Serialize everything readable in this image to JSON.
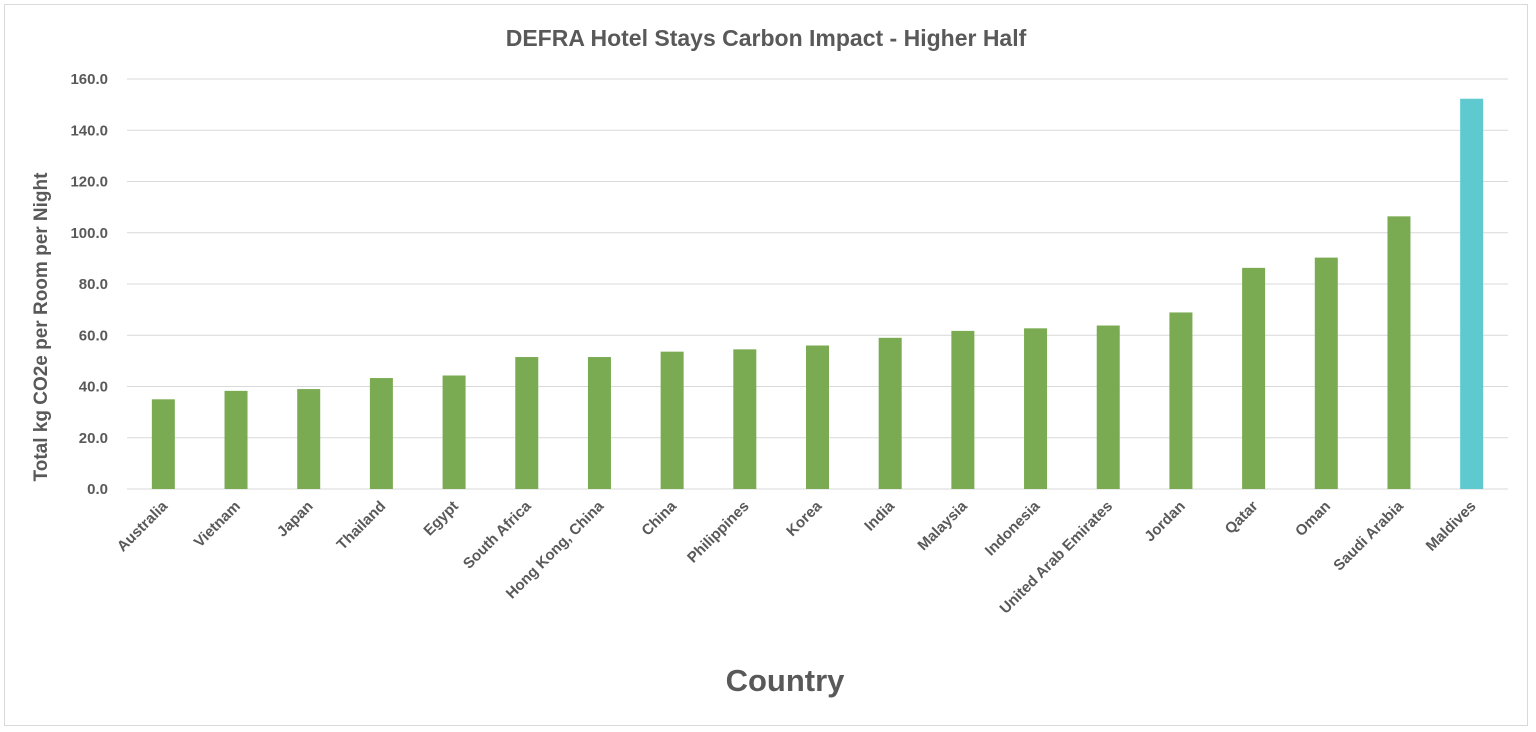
{
  "chart_data": {
    "type": "bar",
    "title": "DEFRA Hotel Stays Carbon Impact - Higher Half",
    "xlabel": "Country",
    "ylabel": "Total kg CO2e per Room per Night",
    "ylim": [
      0,
      160
    ],
    "yticks": [
      0,
      20,
      40,
      60,
      80,
      100,
      120,
      140,
      160
    ],
    "ytick_labels": [
      "0.0",
      "20.0",
      "40.0",
      "60.0",
      "80.0",
      "100.0",
      "120.0",
      "140.0",
      "160.0"
    ],
    "grid": true,
    "legend": "none",
    "categories": [
      "Australia",
      "Vietnam",
      "Japan",
      "Thailand",
      "Egypt",
      "South Africa",
      "Hong Kong, China",
      "China",
      "Philippines",
      "Korea",
      "India",
      "Malaysia",
      "Indonesia",
      "United Arab Emirates",
      "Jordan",
      "Qatar",
      "Oman",
      "Saudi Arabia",
      "Maldives"
    ],
    "values": [
      35.0,
      38.3,
      39.0,
      43.3,
      44.3,
      51.5,
      51.5,
      53.6,
      54.5,
      56.0,
      59.0,
      61.7,
      62.7,
      63.8,
      68.9,
      86.3,
      90.3,
      106.4,
      152.3
    ],
    "colors": {
      "bar": "#7aab52",
      "highlight": "#5fc9d0",
      "grid": "#d9d9d9",
      "text": "#595959"
    },
    "highlight_category": "Maldives"
  }
}
